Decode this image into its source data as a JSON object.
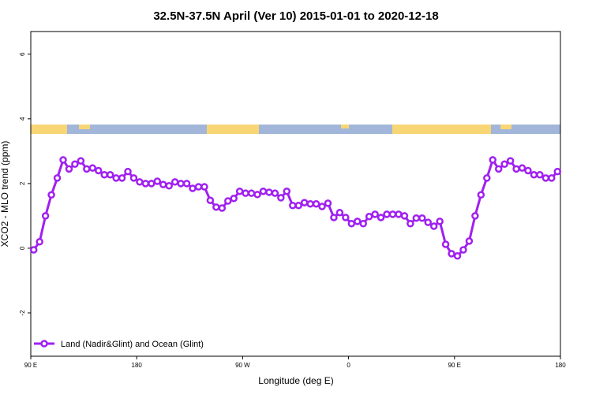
{
  "chart_data": {
    "type": "line",
    "title": "32.5N-37.5N April (Ver 10)   2015-01-01 to 2020-12-18",
    "x_label": "Longitude (deg E)",
    "y_label": "XCO2 - MLO trend (ppm)",
    "x": [
      92.5,
      97.5,
      102.5,
      107.5,
      112.5,
      117.5,
      122.5,
      127.5,
      132.5,
      137.5,
      142.5,
      147.5,
      152.5,
      157.5,
      162.5,
      167.5,
      172.5,
      177.5,
      182.5,
      187.5,
      192.5,
      197.5,
      202.5,
      207.5,
      212.5,
      217.5,
      222.5,
      227.5,
      232.5,
      237.5,
      242.5,
      247.5,
      252.5,
      257.5,
      262.5,
      267.5,
      272.5,
      277.5,
      282.5,
      287.5,
      292.5,
      297.5,
      302.5,
      307.5,
      312.5,
      317.5,
      322.5,
      327.5,
      332.5,
      337.5,
      342.5,
      347.5,
      352.5,
      357.5,
      362.5,
      367.5,
      372.5,
      377.5,
      382.5,
      387.5,
      392.5,
      397.5,
      402.5,
      407.5,
      412.5,
      417.5,
      422.5,
      427.5,
      432.5,
      437.5,
      442.5,
      447.5,
      452.5,
      457.5,
      462.5,
      467.5,
      472.5,
      477.5,
      482.5,
      487.5,
      492.5,
      497.5,
      502.5,
      507.5,
      512.5,
      517.5,
      522.5,
      527.5,
      532.5,
      537.5
    ],
    "series": [
      {
        "name": "Land (Nadir&Glint) and Ocean (Glint)",
        "color": "#a020f0",
        "values": [
          -0.05,
          0.2,
          1.0,
          1.65,
          2.17,
          2.73,
          2.45,
          2.6,
          2.7,
          2.45,
          2.48,
          2.4,
          2.27,
          2.27,
          2.17,
          2.17,
          2.37,
          2.17,
          2.05,
          2.0,
          2.0,
          2.07,
          1.97,
          1.93,
          2.05,
          2.0,
          2.0,
          1.85,
          1.9,
          1.9,
          1.48,
          1.27,
          1.24,
          1.46,
          1.54,
          1.76,
          1.7,
          1.7,
          1.66,
          1.76,
          1.73,
          1.7,
          1.56,
          1.76,
          1.32,
          1.32,
          1.41,
          1.37,
          1.37,
          1.29,
          1.39,
          0.95,
          1.1,
          0.95,
          0.76,
          0.83,
          0.76,
          0.98,
          1.05,
          0.95,
          1.05,
          1.05,
          1.05,
          1.0,
          0.76,
          0.93,
          0.93,
          0.8,
          0.68,
          0.83,
          0.12,
          -0.17,
          -0.24,
          -0.05,
          0.22,
          1.0,
          1.65,
          2.17,
          2.73,
          2.45,
          2.6,
          2.7,
          2.45,
          2.48,
          2.4,
          2.27,
          2.27,
          2.17,
          2.17,
          2.37
        ]
      }
    ],
    "xlim": [
      90,
      540
    ],
    "xticks": [
      {
        "value": 90,
        "label": "90 E"
      },
      180,
      {
        "value": 270,
        "label": "90 W"
      },
      {
        "value": 360,
        "label": "0"
      },
      {
        "value": 450,
        "label": "90 E"
      },
      {
        "value": 540,
        "label": "180"
      }
    ],
    "ylim": [
      -3.34,
      6.7
    ],
    "yticks": [
      -2,
      0,
      2,
      4,
      6
    ],
    "legend": "bottom-left"
  }
}
